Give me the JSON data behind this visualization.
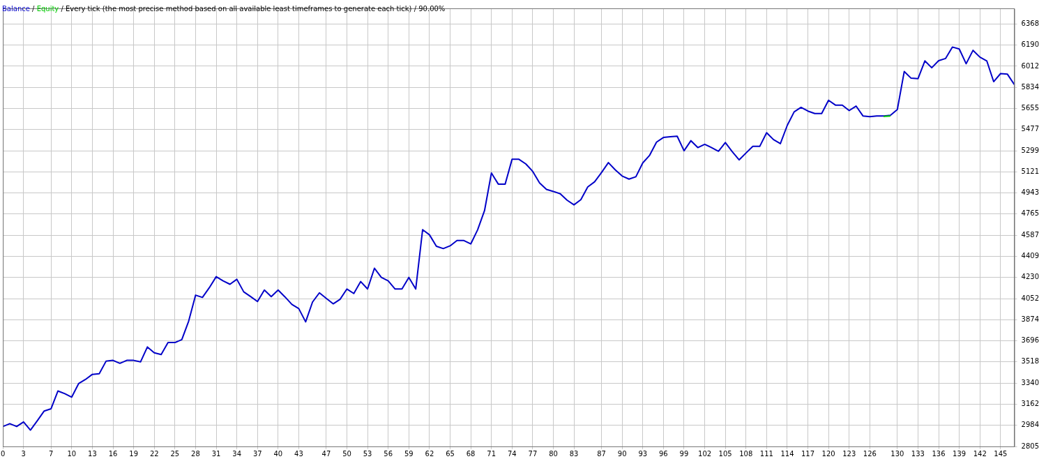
{
  "chart_data": {
    "type": "line",
    "annotations": [
      "/",
      "/ Every tick (the most precise method based on all available least timeframes to generate each tick)",
      "/ 90.00%"
    ],
    "x": [
      0,
      1,
      2,
      3,
      4,
      5,
      6,
      7,
      8,
      9,
      10,
      11,
      12,
      13,
      14,
      15,
      16,
      17,
      18,
      19,
      20,
      21,
      22,
      23,
      24,
      25,
      26,
      27,
      28,
      29,
      30,
      31,
      32,
      33,
      34,
      35,
      36,
      37,
      38,
      39,
      40,
      41,
      42,
      43,
      44,
      45,
      46,
      47,
      48,
      49,
      50,
      51,
      52,
      53,
      54,
      55,
      56,
      57,
      58,
      59,
      60,
      61,
      62,
      63,
      64,
      65,
      66,
      67,
      68,
      69,
      70,
      71,
      72,
      73,
      74,
      75,
      76,
      77,
      78,
      79,
      80,
      81,
      82,
      83,
      84,
      85,
      86,
      87,
      88,
      89,
      90,
      91,
      92,
      93,
      94,
      95,
      96,
      97,
      98,
      99,
      100,
      101,
      102,
      103,
      104,
      105,
      106,
      107,
      108,
      109,
      110,
      111,
      112,
      113,
      114,
      115,
      116,
      117,
      118,
      119,
      120,
      121,
      122,
      123,
      124,
      125,
      126,
      127,
      128,
      129,
      130,
      131,
      132,
      133,
      134,
      135,
      136,
      137,
      138,
      139,
      140,
      141,
      142,
      143,
      144,
      145,
      146,
      147
    ],
    "series": [
      {
        "name": "Balance",
        "color": "#0000c8",
        "values": [
          2973,
          2997,
          2973,
          3012,
          2943,
          3022,
          3104,
          3123,
          3273,
          3250,
          3221,
          3335,
          3370,
          3413,
          3419,
          3525,
          3531,
          3506,
          3531,
          3531,
          3518,
          3644,
          3595,
          3580,
          3681,
          3681,
          3706,
          3862,
          4081,
          4062,
          4144,
          4237,
          4202,
          4173,
          4215,
          4109,
          4069,
          4027,
          4124,
          4069,
          4124,
          4066,
          4003,
          3968,
          3856,
          4023,
          4101,
          4054,
          4008,
          4046,
          4133,
          4095,
          4196,
          4133,
          4308,
          4231,
          4202,
          4133,
          4133,
          4231,
          4133,
          4633,
          4590,
          4494,
          4474,
          4497,
          4542,
          4542,
          4513,
          4633,
          4794,
          5111,
          5018,
          5018,
          5227,
          5227,
          5188,
          5125,
          5028,
          4973,
          4956,
          4936,
          4882,
          4843,
          4886,
          4994,
          5037,
          5115,
          5199,
          5138,
          5086,
          5060,
          5080,
          5197,
          5261,
          5372,
          5411,
          5417,
          5422,
          5299,
          5384,
          5326,
          5353,
          5326,
          5295,
          5368,
          5292,
          5222,
          5280,
          5336,
          5336,
          5451,
          5393,
          5359,
          5513,
          5627,
          5665,
          5634,
          5613,
          5613,
          5725,
          5684,
          5684,
          5638,
          5676,
          5593,
          5586,
          5593,
          5593,
          5598,
          5647,
          5967,
          5911,
          5907,
          6057,
          5999,
          6059,
          6077,
          6174,
          6157,
          6033,
          6146,
          6089,
          6057,
          5882,
          5950,
          5945,
          5858
        ]
      },
      {
        "name": "Equity",
        "color": "#00c800",
        "values": [
          null,
          null,
          null,
          null,
          null,
          null,
          null,
          null,
          null,
          null,
          null,
          null,
          null,
          null,
          null,
          null,
          null,
          null,
          null,
          null,
          null,
          null,
          null,
          null,
          null,
          null,
          null,
          null,
          null,
          null,
          null,
          null,
          null,
          null,
          null,
          null,
          null,
          null,
          null,
          null,
          null,
          null,
          null,
          null,
          null,
          null,
          null,
          null,
          null,
          null,
          null,
          null,
          null,
          null,
          null,
          null,
          null,
          null,
          null,
          null,
          null,
          null,
          null,
          null,
          null,
          null,
          null,
          null,
          null,
          null,
          null,
          null,
          null,
          null,
          null,
          null,
          null,
          null,
          null,
          null,
          null,
          null,
          null,
          null,
          null,
          null,
          null,
          null,
          null,
          null,
          null,
          null,
          null,
          null,
          null,
          null,
          null,
          null,
          null,
          null,
          null,
          null,
          null,
          null,
          null,
          null,
          null,
          null,
          null,
          null,
          null,
          null,
          null,
          null,
          null,
          null,
          null,
          null,
          null,
          null,
          null,
          null,
          null,
          null,
          null,
          null,
          null,
          null,
          5588,
          5593,
          null,
          null,
          null,
          null,
          null,
          null,
          null,
          null,
          null,
          null,
          null,
          null,
          null,
          null,
          null,
          null,
          null,
          null
        ]
      }
    ],
    "xlim": [
      0,
      147
    ],
    "xticks": [
      0,
      3,
      7,
      10,
      13,
      16,
      19,
      22,
      25,
      28,
      31,
      34,
      37,
      40,
      43,
      47,
      50,
      53,
      56,
      59,
      62,
      65,
      68,
      71,
      74,
      77,
      80,
      83,
      87,
      90,
      93,
      96,
      99,
      102,
      105,
      108,
      111,
      114,
      117,
      120,
      123,
      126,
      130,
      133,
      136,
      139,
      142,
      145
    ],
    "ylim": [
      2805,
      6500
    ],
    "yticks": [
      2805,
      2984,
      3162,
      3340,
      3518,
      3696,
      3874,
      4052,
      4230,
      4409,
      4587,
      4765,
      4943,
      5121,
      5299,
      5477,
      5655,
      5834,
      6012,
      6190,
      6368
    ],
    "grid": true,
    "legend": "top left",
    "marker": "none",
    "line_style": "solid"
  }
}
